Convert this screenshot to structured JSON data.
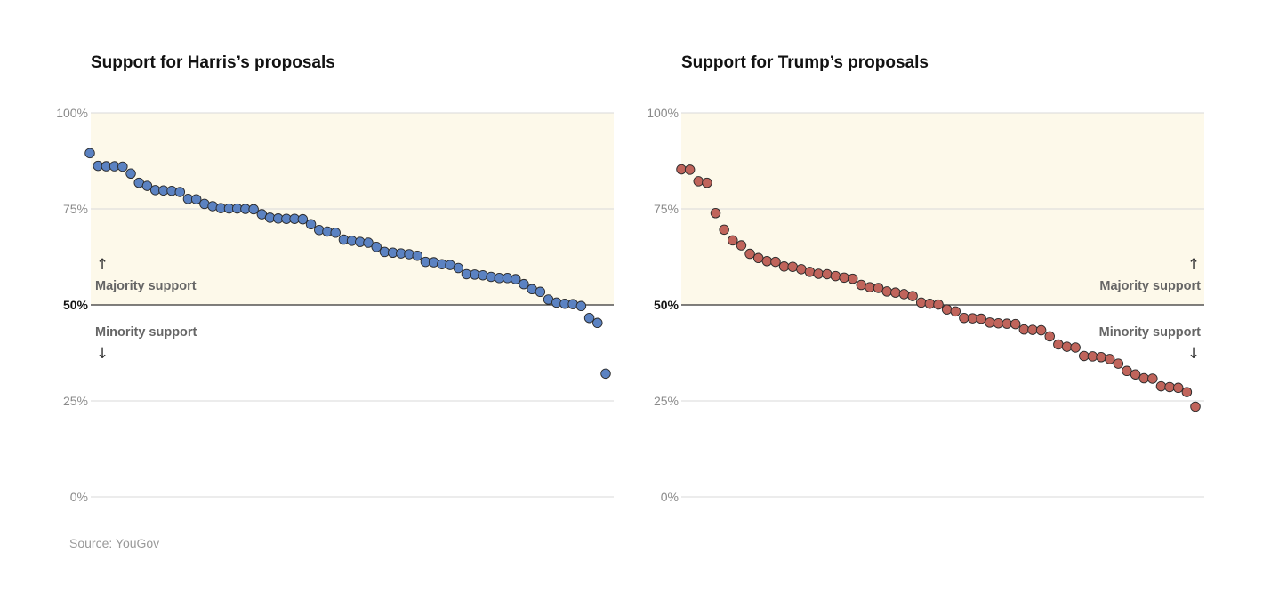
{
  "source": "Source: YouGov",
  "annotations": {
    "majority": "Majority support",
    "minority": "Minority support",
    "up_arrow": "↑",
    "down_arrow": "↓"
  },
  "colors": {
    "harris_dot": "#5b82c2",
    "trump_dot": "#c0645b",
    "majority_band": "#fdf9ea",
    "gridline": "#d9d9d9",
    "midline": "#333333"
  },
  "chart_data": [
    {
      "type": "scatter",
      "title": "Support for Harris’s proposals",
      "xlabel": "",
      "ylabel": "",
      "ylim": [
        0,
        100
      ],
      "yticks": [
        "0%",
        "25%",
        "50%",
        "75%",
        "100%"
      ],
      "grid": true,
      "shaded_region": [
        50,
        100
      ],
      "values": [
        89.5,
        86.2,
        86.1,
        86.1,
        86.0,
        84.2,
        81.8,
        81.0,
        79.9,
        79.8,
        79.7,
        79.4,
        77.6,
        77.5,
        76.3,
        75.7,
        75.2,
        75.1,
        75.1,
        75.0,
        74.9,
        73.6,
        72.7,
        72.5,
        72.4,
        72.4,
        72.3,
        71.0,
        69.5,
        69.1,
        68.8,
        67.0,
        66.7,
        66.4,
        66.2,
        65.1,
        63.8,
        63.6,
        63.4,
        63.2,
        62.8,
        61.2,
        61.1,
        60.6,
        60.4,
        59.6,
        58.0,
        57.9,
        57.7,
        57.3,
        57.0,
        57.0,
        56.7,
        55.4,
        54.1,
        53.4,
        51.4,
        50.6,
        50.3,
        50.2,
        49.7,
        46.6,
        45.3,
        32.1
      ]
    },
    {
      "type": "scatter",
      "title": "Support for Trump’s proposals",
      "xlabel": "",
      "ylabel": "",
      "ylim": [
        0,
        100
      ],
      "yticks": [
        "0%",
        "25%",
        "50%",
        "75%",
        "100%"
      ],
      "grid": true,
      "shaded_region": [
        50,
        100
      ],
      "values": [
        85.3,
        85.2,
        82.2,
        81.8,
        73.9,
        69.6,
        66.8,
        65.5,
        63.3,
        62.2,
        61.4,
        61.2,
        60.0,
        59.9,
        59.3,
        58.6,
        58.1,
        58.0,
        57.5,
        57.1,
        56.8,
        55.2,
        54.6,
        54.4,
        53.5,
        53.2,
        52.8,
        52.3,
        50.6,
        50.3,
        50.1,
        48.8,
        48.3,
        46.6,
        46.5,
        46.4,
        45.4,
        45.2,
        45.1,
        45.0,
        43.6,
        43.5,
        43.4,
        41.8,
        39.7,
        39.1,
        38.9,
        36.7,
        36.6,
        36.4,
        35.9,
        34.7,
        32.8,
        31.9,
        30.9,
        30.8,
        28.8,
        28.6,
        28.4,
        27.3,
        23.5
      ]
    }
  ]
}
